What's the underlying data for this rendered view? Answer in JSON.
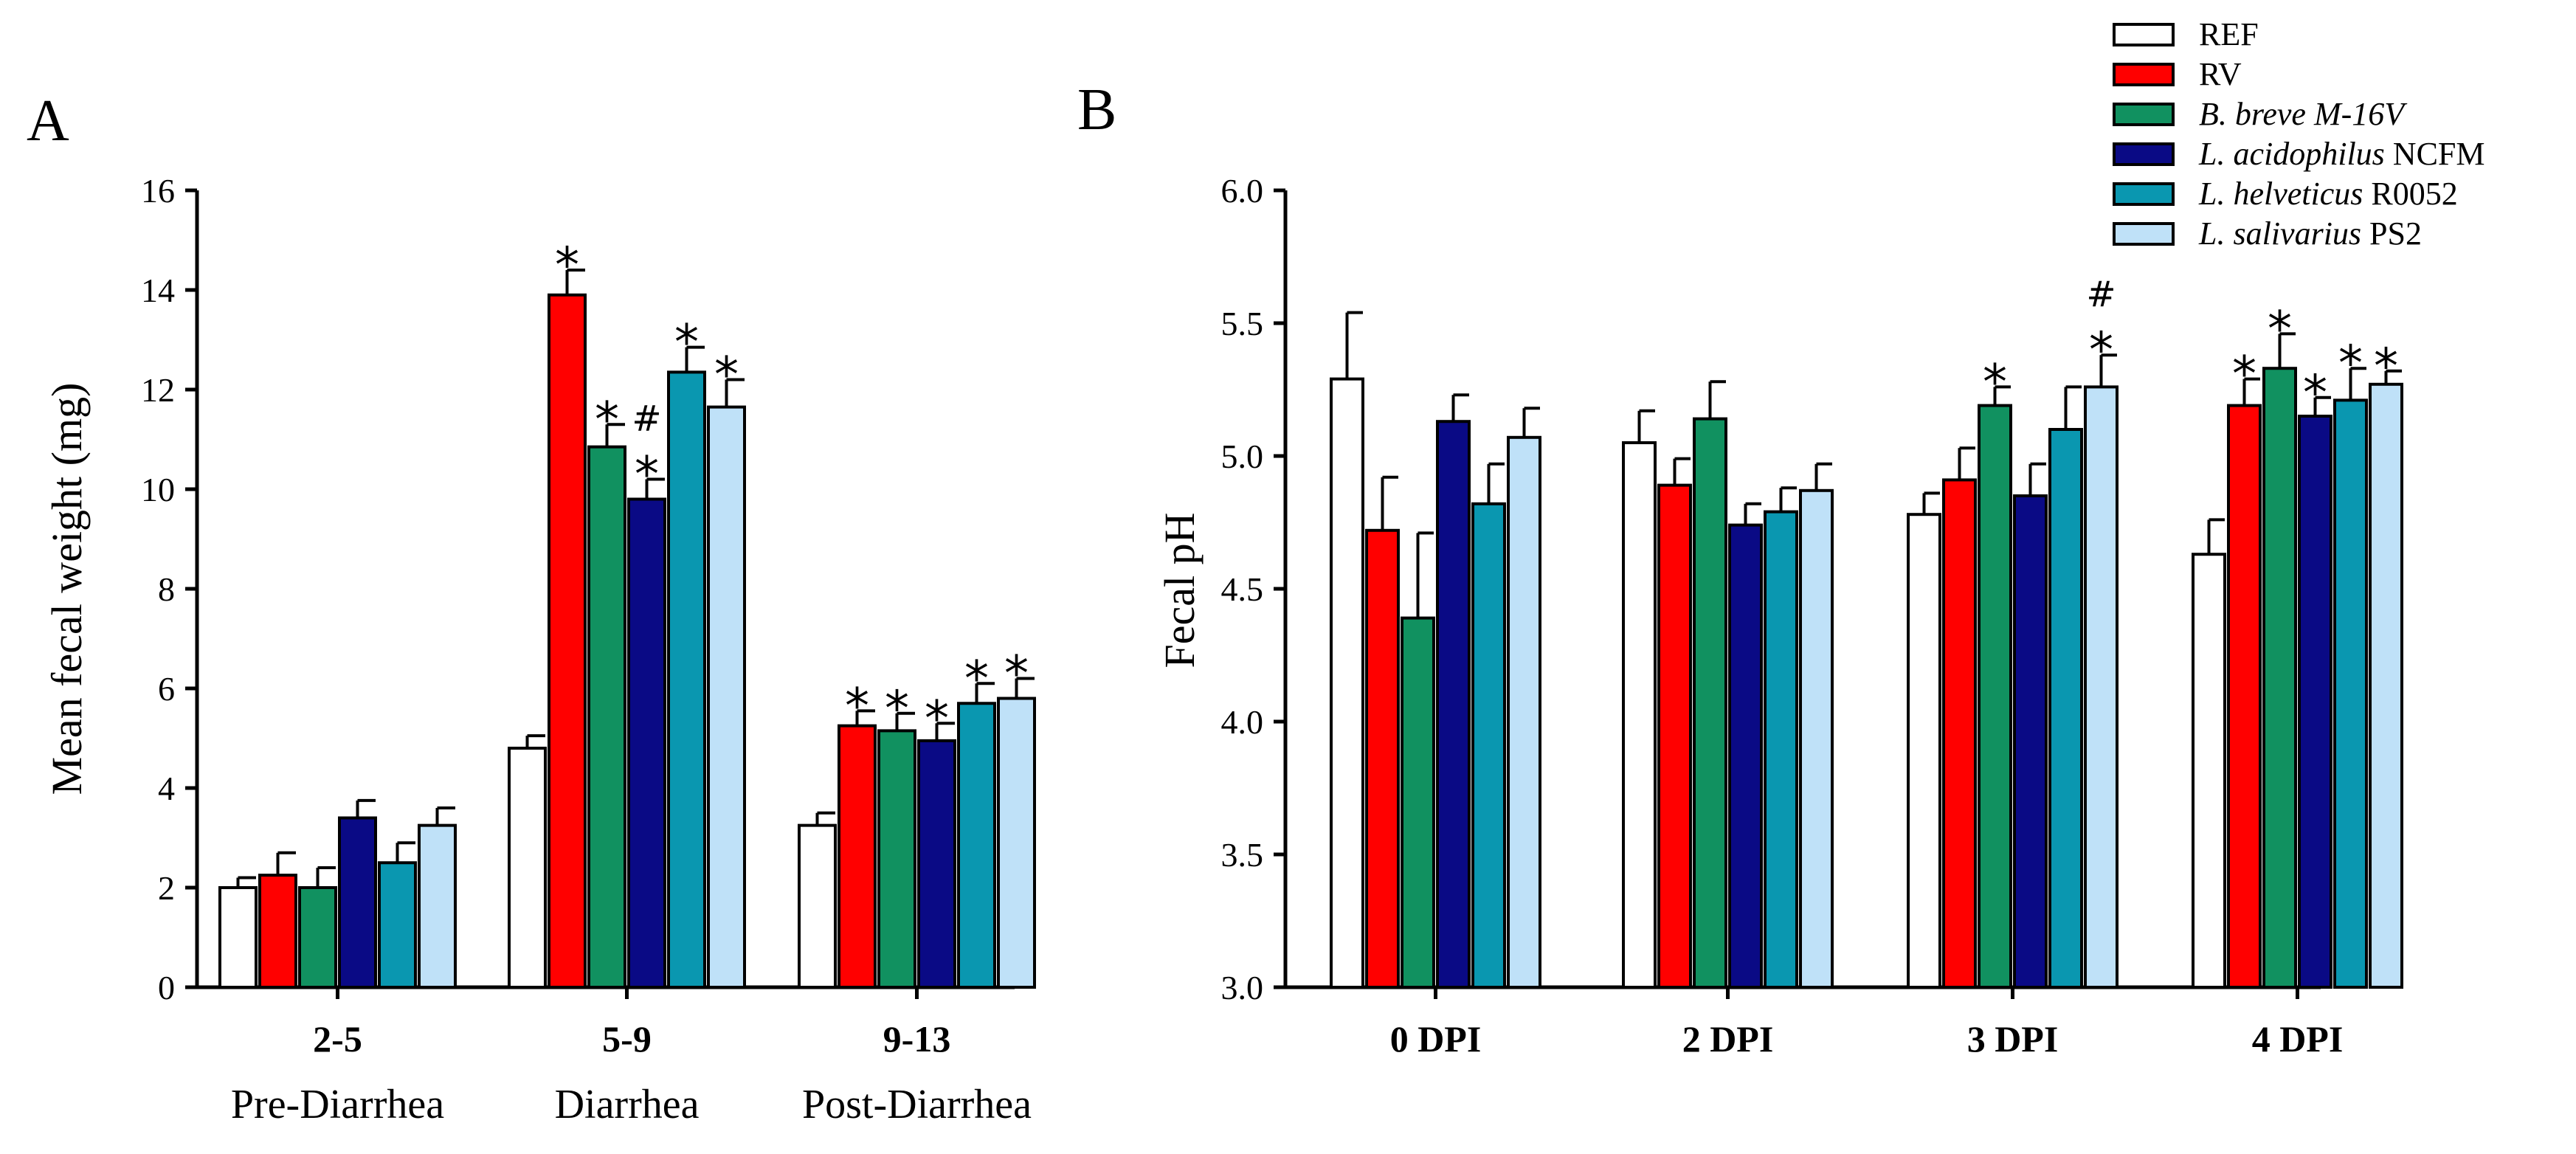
{
  "colors": {
    "REF": "#ffffff",
    "RV": "#ff0000",
    "B. breve M-16V": "#119160",
    "L. acidophilus NCFM": "#0a0a85",
    "L. helveticus R0052": "#0a97b0",
    "L. salivarius PS2": "#bfe1f8",
    "stroke": "#000000"
  },
  "legend": [
    {
      "key": "REF",
      "parts": [
        {
          "t": "REF",
          "i": false
        }
      ]
    },
    {
      "key": "RV",
      "parts": [
        {
          "t": "RV",
          "i": false
        }
      ]
    },
    {
      "key": "B. breve M-16V",
      "parts": [
        {
          "t": "B. breve M-16V",
          "i": true
        }
      ]
    },
    {
      "key": "L. acidophilus NCFM",
      "parts": [
        {
          "t": "L. acidophilus",
          "i": true
        },
        {
          "t": " NCFM",
          "i": false
        }
      ]
    },
    {
      "key": "L. helveticus R0052",
      "parts": [
        {
          "t": "L. helveticus",
          "i": true
        },
        {
          "t": " R0052",
          "i": false
        }
      ]
    },
    {
      "key": "L. salivarius PS2",
      "parts": [
        {
          "t": "L. salivarius",
          "i": true
        },
        {
          "t": " PS2",
          "i": false
        }
      ]
    }
  ],
  "chart_data": [
    {
      "panel": "A",
      "type": "bar",
      "ylabel": "Mean fecal weight (mg)",
      "ylim": [
        0,
        16
      ],
      "yticks": [
        0,
        2,
        4,
        6,
        8,
        10,
        12,
        14,
        16
      ],
      "categories": [
        "2-5",
        "5-9",
        "9-13"
      ],
      "subcategories": [
        "Pre-Diarrhea",
        "Diarrhea",
        "Post-Diarrhea"
      ],
      "series": [
        {
          "name": "REF",
          "values": [
            2.0,
            4.8,
            3.25
          ],
          "errors": [
            0.2,
            0.25,
            0.25
          ]
        },
        {
          "name": "RV",
          "values": [
            2.25,
            13.9,
            5.25
          ],
          "errors": [
            0.45,
            0.5,
            0.3
          ]
        },
        {
          "name": "B. breve M-16V",
          "values": [
            2.0,
            10.85,
            5.15
          ],
          "errors": [
            0.4,
            0.45,
            0.35
          ]
        },
        {
          "name": "L. acidophilus NCFM",
          "values": [
            3.4,
            9.8,
            4.95
          ],
          "errors": [
            0.35,
            0.4,
            0.35
          ]
        },
        {
          "name": "L. helveticus R0052",
          "values": [
            2.5,
            12.35,
            5.7
          ],
          "errors": [
            0.4,
            0.5,
            0.4
          ]
        },
        {
          "name": "L. salivarius PS2",
          "values": [
            3.25,
            11.65,
            5.8
          ],
          "errors": [
            0.35,
            0.55,
            0.4
          ]
        }
      ],
      "annotations": [
        {
          "series": 1,
          "cat": 1,
          "text": "*"
        },
        {
          "series": 2,
          "cat": 1,
          "text": "*"
        },
        {
          "series": 3,
          "cat": 1,
          "text": "*"
        },
        {
          "series": 3,
          "cat": 1,
          "text": "#"
        },
        {
          "series": 4,
          "cat": 1,
          "text": "*"
        },
        {
          "series": 5,
          "cat": 1,
          "text": "*"
        },
        {
          "series": 1,
          "cat": 2,
          "text": "*"
        },
        {
          "series": 2,
          "cat": 2,
          "text": "*"
        },
        {
          "series": 3,
          "cat": 2,
          "text": "*"
        },
        {
          "series": 4,
          "cat": 2,
          "text": "*"
        },
        {
          "series": 5,
          "cat": 2,
          "text": "*"
        }
      ]
    },
    {
      "panel": "B",
      "type": "bar",
      "ylabel": "Fecal pH",
      "ylim": [
        3.0,
        6.0
      ],
      "yticks": [
        "3.0",
        "3.5",
        "4.0",
        "4.5",
        "5.0",
        "5.5",
        "6.0"
      ],
      "categories": [
        "0 DPI",
        "2 DPI",
        "3 DPI",
        "4 DPI"
      ],
      "series": [
        {
          "name": "REF",
          "values": [
            5.29,
            5.05,
            4.78,
            4.63
          ],
          "errors": [
            0.25,
            0.12,
            0.08,
            0.13
          ]
        },
        {
          "name": "RV",
          "values": [
            4.72,
            4.89,
            4.91,
            5.19
          ],
          "errors": [
            0.2,
            0.1,
            0.12,
            0.1
          ]
        },
        {
          "name": "B. breve M-16V",
          "values": [
            4.39,
            5.14,
            5.19,
            5.33
          ],
          "errors": [
            0.32,
            0.14,
            0.07,
            0.13
          ]
        },
        {
          "name": "L. acidophilus NCFM",
          "values": [
            5.13,
            4.74,
            4.85,
            5.15
          ],
          "errors": [
            0.1,
            0.08,
            0.12,
            0.07
          ]
        },
        {
          "name": "L. helveticus R0052",
          "values": [
            4.82,
            4.79,
            5.1,
            5.21
          ],
          "errors": [
            0.15,
            0.09,
            0.16,
            0.12
          ]
        },
        {
          "name": "L. salivarius PS2",
          "values": [
            5.07,
            4.87,
            5.26,
            5.27
          ],
          "errors": [
            0.11,
            0.1,
            0.12,
            0.05
          ]
        }
      ],
      "annotations": [
        {
          "series": 2,
          "cat": 2,
          "text": "*"
        },
        {
          "series": 5,
          "cat": 2,
          "text": "*"
        },
        {
          "series": 5,
          "cat": 2,
          "text": "#"
        },
        {
          "series": 1,
          "cat": 3,
          "text": "*"
        },
        {
          "series": 2,
          "cat": 3,
          "text": "*"
        },
        {
          "series": 3,
          "cat": 3,
          "text": "*"
        },
        {
          "series": 4,
          "cat": 3,
          "text": "*"
        },
        {
          "series": 5,
          "cat": 3,
          "text": "*"
        }
      ]
    }
  ]
}
